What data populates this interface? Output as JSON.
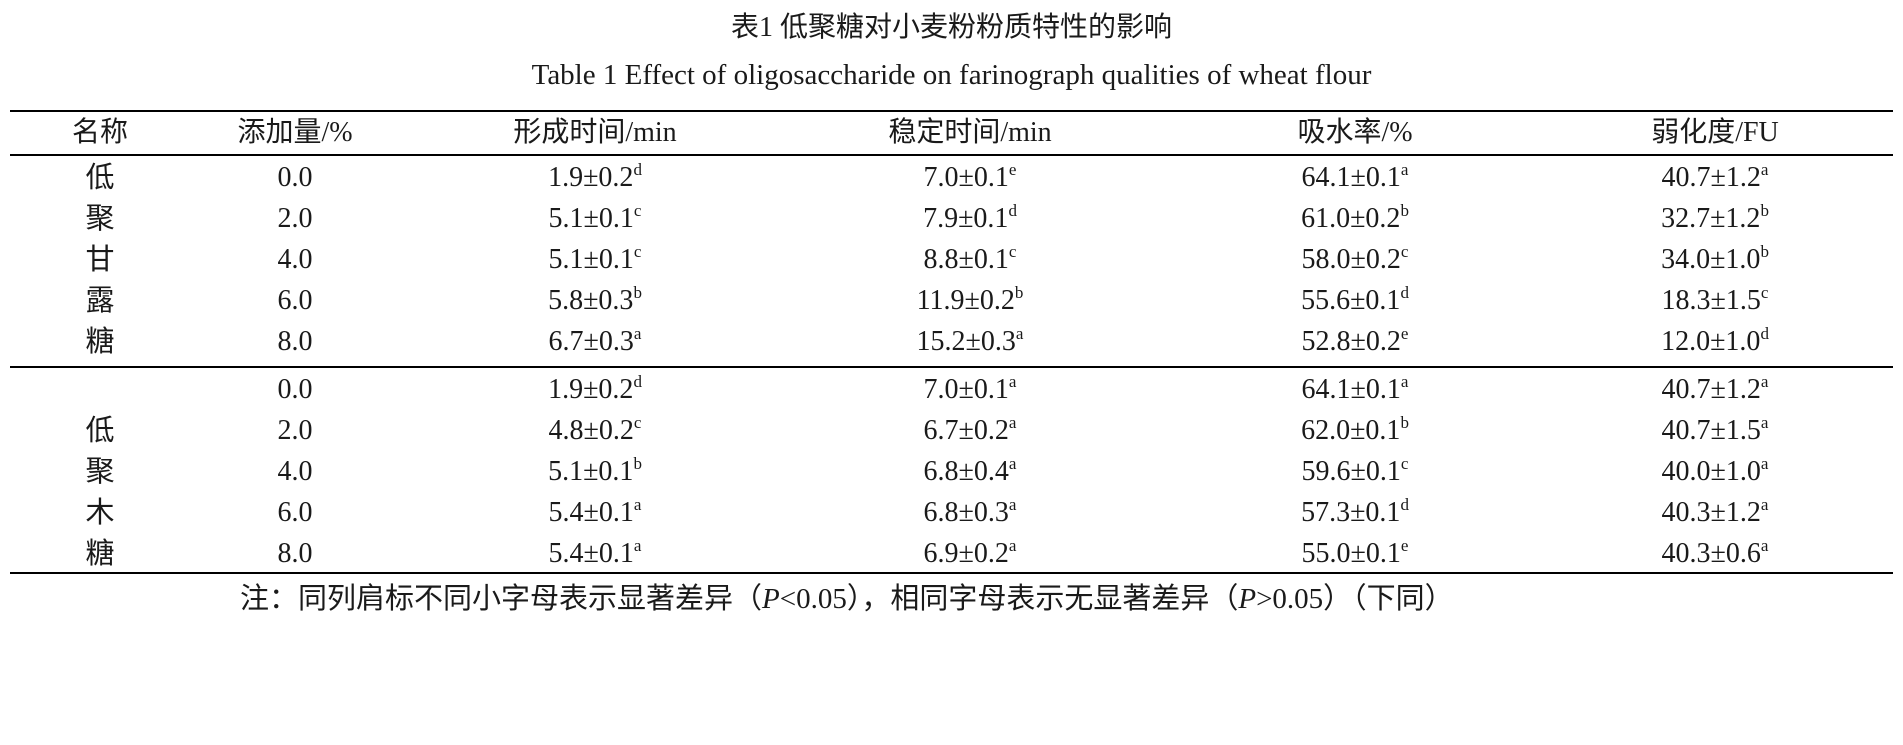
{
  "title_cn": "表1  低聚糖对小麦粉粉质特性的影响",
  "title_en": "Table 1 Effect of oligosaccharide on farinograph qualities of wheat flour",
  "headers": [
    "名称",
    "添加量/%",
    "形成时间/min",
    "稳定时间/min",
    "吸水率/%",
    "弱化度/FU"
  ],
  "groups": [
    {
      "rows": [
        {
          "name": "低",
          "amount": "0.0",
          "dev_time": "1.9±0.2",
          "dev_sig": "d",
          "stab_time": "7.0±0.1",
          "stab_sig": "e",
          "absorption": "64.1±0.1",
          "abs_sig": "a",
          "weakening": "40.7±1.2",
          "weak_sig": "a"
        },
        {
          "name": "聚",
          "amount": "2.0",
          "dev_time": "5.1±0.1",
          "dev_sig": "c",
          "stab_time": "7.9±0.1",
          "stab_sig": "d",
          "absorption": "61.0±0.2",
          "abs_sig": "b",
          "weakening": "32.7±1.2",
          "weak_sig": "b"
        },
        {
          "name": "甘",
          "amount": "4.0",
          "dev_time": "5.1±0.1",
          "dev_sig": "c",
          "stab_time": "8.8±0.1",
          "stab_sig": "c",
          "absorption": "58.0±0.2",
          "abs_sig": "c",
          "weakening": "34.0±1.0",
          "weak_sig": "b"
        },
        {
          "name": "露",
          "amount": "6.0",
          "dev_time": "5.8±0.3",
          "dev_sig": "b",
          "stab_time": "11.9±0.2",
          "stab_sig": "b",
          "absorption": "55.6±0.1",
          "abs_sig": "d",
          "weakening": "18.3±1.5",
          "weak_sig": "c"
        },
        {
          "name": "糖",
          "amount": "8.0",
          "dev_time": "6.7±0.3",
          "dev_sig": "a",
          "stab_time": "15.2±0.3",
          "stab_sig": "a",
          "absorption": "52.8±0.2",
          "abs_sig": "e",
          "weakening": "12.0±1.0",
          "weak_sig": "d"
        }
      ]
    },
    {
      "rows": [
        {
          "name": "",
          "amount": "0.0",
          "dev_time": "1.9±0.2",
          "dev_sig": "d",
          "stab_time": "7.0±0.1",
          "stab_sig": "a",
          "absorption": "64.1±0.1",
          "abs_sig": "a",
          "weakening": "40.7±1.2",
          "weak_sig": "a"
        },
        {
          "name": "低",
          "amount": "2.0",
          "dev_time": "4.8±0.2",
          "dev_sig": "c",
          "stab_time": "6.7±0.2",
          "stab_sig": "a",
          "absorption": "62.0±0.1",
          "abs_sig": "b",
          "weakening": "40.7±1.5",
          "weak_sig": "a"
        },
        {
          "name": "聚",
          "amount": "4.0",
          "dev_time": "5.1±0.1",
          "dev_sig": "b",
          "stab_time": "6.8±0.4",
          "stab_sig": "a",
          "absorption": "59.6±0.1",
          "abs_sig": "c",
          "weakening": "40.0±1.0",
          "weak_sig": "a"
        },
        {
          "name": "木",
          "amount": "6.0",
          "dev_time": "5.4±0.1",
          "dev_sig": "a",
          "stab_time": "6.8±0.3",
          "stab_sig": "a",
          "absorption": "57.3±0.1",
          "abs_sig": "d",
          "weakening": "40.3±1.2",
          "weak_sig": "a"
        },
        {
          "name": "糖",
          "amount": "8.0",
          "dev_time": "5.4±0.1",
          "dev_sig": "a",
          "stab_time": "6.9±0.2",
          "stab_sig": "a",
          "absorption": "55.0±0.1",
          "abs_sig": "e",
          "weakening": "40.3±0.6",
          "weak_sig": "a"
        }
      ]
    }
  ],
  "note": {
    "prefix": "注：同列肩标不同小字母表示显著差异（",
    "p1": "P",
    "mid1": "<0.05），相同字母表示无显著差异（",
    "p2": "P",
    "suffix": ">0.05）（下同）"
  }
}
